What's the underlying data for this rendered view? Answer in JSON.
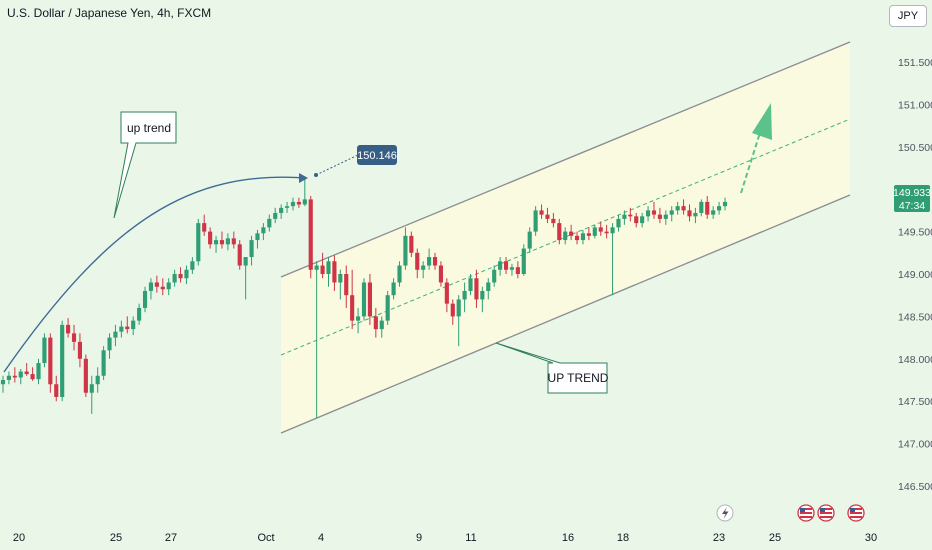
{
  "header": {
    "title": "U.S. Dollar / Japanese Yen, 4h, FXCM",
    "currency": "JPY"
  },
  "colors": {
    "background": "#eaf6e8",
    "channel_fill": "#fbfbdf",
    "channel_line": "#8a8c8f",
    "midline": "#3cb371",
    "up_candle": "#2f9e74",
    "down_candle": "#cf3546",
    "arrow": "#5bc28c",
    "curve": "#3c6b94",
    "price_tag": "#375f86",
    "annotation_border": "#2e7d5b",
    "last_price_bg": "#2f9e74"
  },
  "annotations": {
    "up_trend_label": "up trend",
    "up_trend_caps_label": "UP TREND",
    "price_tag": "150.146"
  },
  "last_price": {
    "value": "149.933",
    "countdown": "47:34"
  },
  "event_icons": [
    "lightning-icon",
    "us-flag-icon",
    "us-flag-icon",
    "us-flag-icon"
  ],
  "chart_data": {
    "type": "candlestick",
    "symbol": "USDJPY",
    "interval": "4h",
    "xaxis_ticks": [
      "20",
      "25",
      "27",
      "Oct",
      "4",
      "9",
      "11",
      "16",
      "18",
      "23",
      "25",
      "30"
    ],
    "yaxis_ticks": [
      "151.500",
      "151.000",
      "150.500",
      "149.500",
      "149.000",
      "148.500",
      "148.000",
      "147.500",
      "147.000",
      "146.500"
    ],
    "ylim": [
      146.2,
      151.8
    ],
    "candles": [
      [
        147.7,
        147.8,
        147.6,
        147.75
      ],
      [
        147.75,
        147.85,
        147.7,
        147.8
      ],
      [
        147.8,
        147.9,
        147.72,
        147.78
      ],
      [
        147.78,
        147.88,
        147.7,
        147.85
      ],
      [
        147.85,
        147.95,
        147.8,
        147.82
      ],
      [
        147.82,
        147.9,
        147.74,
        147.76
      ],
      [
        147.76,
        148.0,
        147.7,
        147.95
      ],
      [
        147.95,
        148.3,
        147.9,
        148.25
      ],
      [
        148.25,
        148.3,
        147.6,
        147.7
      ],
      [
        147.7,
        147.8,
        147.5,
        147.55
      ],
      [
        147.55,
        148.45,
        147.5,
        148.4
      ],
      [
        148.4,
        148.48,
        148.25,
        148.3
      ],
      [
        148.3,
        148.4,
        148.1,
        148.2
      ],
      [
        148.2,
        148.3,
        147.9,
        148.0
      ],
      [
        148.0,
        148.05,
        147.55,
        147.6
      ],
      [
        147.6,
        147.8,
        147.35,
        147.7
      ],
      [
        147.7,
        147.9,
        147.6,
        147.8
      ],
      [
        147.8,
        148.15,
        147.75,
        148.1
      ],
      [
        148.1,
        148.3,
        148.0,
        148.25
      ],
      [
        148.25,
        148.4,
        148.15,
        148.32
      ],
      [
        148.32,
        148.45,
        148.25,
        148.38
      ],
      [
        148.38,
        148.5,
        148.3,
        148.35
      ],
      [
        148.35,
        148.5,
        148.28,
        148.45
      ],
      [
        148.45,
        148.65,
        148.4,
        148.6
      ],
      [
        148.6,
        148.85,
        148.55,
        148.8
      ],
      [
        148.8,
        148.95,
        148.7,
        148.9
      ],
      [
        148.9,
        148.98,
        148.78,
        148.85
      ],
      [
        148.85,
        148.95,
        148.75,
        148.82
      ],
      [
        148.82,
        148.95,
        148.75,
        148.9
      ],
      [
        148.9,
        149.05,
        148.85,
        149.0
      ],
      [
        149.0,
        149.08,
        148.9,
        148.95
      ],
      [
        148.95,
        149.1,
        148.88,
        149.05
      ],
      [
        149.05,
        149.2,
        149.0,
        149.15
      ],
      [
        149.15,
        149.65,
        149.1,
        149.6
      ],
      [
        149.6,
        149.7,
        149.45,
        149.5
      ],
      [
        149.5,
        149.55,
        149.3,
        149.35
      ],
      [
        149.35,
        149.45,
        149.25,
        149.4
      ],
      [
        149.4,
        149.5,
        149.3,
        149.35
      ],
      [
        149.35,
        149.48,
        149.28,
        149.42
      ],
      [
        149.42,
        149.5,
        149.3,
        149.35
      ],
      [
        149.35,
        149.4,
        149.05,
        149.1
      ],
      [
        149.1,
        149.2,
        148.7,
        149.2
      ],
      [
        149.2,
        149.45,
        149.1,
        149.4
      ],
      [
        149.4,
        149.52,
        149.3,
        149.48
      ],
      [
        149.48,
        149.6,
        149.4,
        149.55
      ],
      [
        149.55,
        149.7,
        149.5,
        149.65
      ],
      [
        149.65,
        149.78,
        149.6,
        149.72
      ],
      [
        149.72,
        149.82,
        149.65,
        149.78
      ],
      [
        149.78,
        149.85,
        149.72,
        149.8
      ],
      [
        149.8,
        149.9,
        149.75,
        149.85
      ],
      [
        149.85,
        149.9,
        149.78,
        149.82
      ],
      [
        149.82,
        150.15,
        149.8,
        149.88
      ],
      [
        149.88,
        149.92,
        148.95,
        149.05
      ],
      [
        149.05,
        149.15,
        147.3,
        149.1
      ],
      [
        149.1,
        149.25,
        148.95,
        149.0
      ],
      [
        149.0,
        149.2,
        148.85,
        149.15
      ],
      [
        149.15,
        149.22,
        148.8,
        148.9
      ],
      [
        148.9,
        149.05,
        148.7,
        149.0
      ],
      [
        149.0,
        149.1,
        148.6,
        148.75
      ],
      [
        148.75,
        149.05,
        148.35,
        148.45
      ],
      [
        148.45,
        148.6,
        148.3,
        148.5
      ],
      [
        148.5,
        148.95,
        148.45,
        148.9
      ],
      [
        148.9,
        149.0,
        148.4,
        148.5
      ],
      [
        148.5,
        148.6,
        148.25,
        148.35
      ],
      [
        148.35,
        148.5,
        148.25,
        148.45
      ],
      [
        148.45,
        148.8,
        148.4,
        148.75
      ],
      [
        148.75,
        148.95,
        148.7,
        148.9
      ],
      [
        148.9,
        149.15,
        148.85,
        149.1
      ],
      [
        149.1,
        149.55,
        149.05,
        149.45
      ],
      [
        149.45,
        149.5,
        149.2,
        149.25
      ],
      [
        149.25,
        149.3,
        148.95,
        149.05
      ],
      [
        149.05,
        149.15,
        148.95,
        149.1
      ],
      [
        149.1,
        149.3,
        149.05,
        149.2
      ],
      [
        149.2,
        149.25,
        149.05,
        149.1
      ],
      [
        149.1,
        149.15,
        148.85,
        148.9
      ],
      [
        148.9,
        148.95,
        148.55,
        148.65
      ],
      [
        148.65,
        148.7,
        148.4,
        148.5
      ],
      [
        148.5,
        148.75,
        148.15,
        148.7
      ],
      [
        148.7,
        148.9,
        148.55,
        148.8
      ],
      [
        148.8,
        149.0,
        148.75,
        148.95
      ],
      [
        148.95,
        149.05,
        148.6,
        148.7
      ],
      [
        148.7,
        148.85,
        148.55,
        148.8
      ],
      [
        148.8,
        148.95,
        148.7,
        148.9
      ],
      [
        148.9,
        149.1,
        148.85,
        149.05
      ],
      [
        149.05,
        149.2,
        148.98,
        149.15
      ],
      [
        149.15,
        149.2,
        149.0,
        149.05
      ],
      [
        149.05,
        149.12,
        148.98,
        149.08
      ],
      [
        149.08,
        149.15,
        148.95,
        149.0
      ],
      [
        149.0,
        149.35,
        148.98,
        149.3
      ],
      [
        149.3,
        149.55,
        149.25,
        149.5
      ],
      [
        149.5,
        149.8,
        149.45,
        149.75
      ],
      [
        149.75,
        149.82,
        149.65,
        149.7
      ],
      [
        149.7,
        149.78,
        149.6,
        149.65
      ],
      [
        149.65,
        149.72,
        149.55,
        149.6
      ],
      [
        149.6,
        149.65,
        149.35,
        149.4
      ],
      [
        149.4,
        149.55,
        149.35,
        149.5
      ],
      [
        149.5,
        149.58,
        149.4,
        149.45
      ],
      [
        149.45,
        149.5,
        149.35,
        149.4
      ],
      [
        149.4,
        149.52,
        149.35,
        149.48
      ],
      [
        149.48,
        149.55,
        149.4,
        149.45
      ],
      [
        149.45,
        149.58,
        149.42,
        149.55
      ],
      [
        149.55,
        149.62,
        149.45,
        149.5
      ],
      [
        149.5,
        149.58,
        149.42,
        149.48
      ],
      [
        149.48,
        149.6,
        148.75,
        149.55
      ],
      [
        149.55,
        149.7,
        149.5,
        149.65
      ],
      [
        149.65,
        149.75,
        149.58,
        149.7
      ],
      [
        149.7,
        149.78,
        149.62,
        149.68
      ],
      [
        149.68,
        149.72,
        149.55,
        149.6
      ],
      [
        149.6,
        149.72,
        149.55,
        149.68
      ],
      [
        149.68,
        149.8,
        149.62,
        149.75
      ],
      [
        149.75,
        149.85,
        149.65,
        149.7
      ],
      [
        149.7,
        149.78,
        149.6,
        149.65
      ],
      [
        149.65,
        149.75,
        149.58,
        149.7
      ],
      [
        149.7,
        149.8,
        149.62,
        149.75
      ],
      [
        149.75,
        149.85,
        149.7,
        149.8
      ],
      [
        149.8,
        149.88,
        149.7,
        149.75
      ],
      [
        149.75,
        149.82,
        149.62,
        149.68
      ],
      [
        149.68,
        149.78,
        149.6,
        149.72
      ],
      [
        149.72,
        149.88,
        149.68,
        149.85
      ],
      [
        149.85,
        149.92,
        149.65,
        149.7
      ],
      [
        149.7,
        149.8,
        149.65,
        149.75
      ],
      [
        149.75,
        149.85,
        149.7,
        149.8
      ],
      [
        149.8,
        149.9,
        149.75,
        149.85
      ]
    ]
  }
}
